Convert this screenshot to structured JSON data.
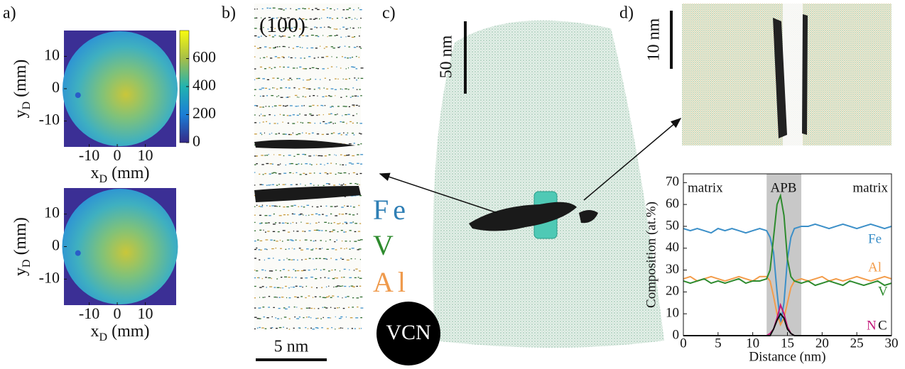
{
  "panel_labels": [
    "a)",
    "b)",
    "c)",
    "d)"
  ],
  "panel_b": {
    "orientation": "(100)",
    "scale_bar": "5 nm"
  },
  "elements": [
    {
      "name": "Fe",
      "color": "#2f7fb5"
    },
    {
      "name": "V",
      "color": "#2e8b2e"
    },
    {
      "name": "Al",
      "color": "#ef9a4c"
    }
  ],
  "badge": "VCN",
  "panel_c": {
    "scale_bar": "50 nm"
  },
  "panel_d": {
    "scale_bar": "10 nm"
  },
  "chart_data": [
    {
      "type": "heatmap",
      "xlabel": {
        "base": "x",
        "sub": "D",
        "unit": " (mm)"
      },
      "ylabel": {
        "base": "y",
        "sub": "D",
        "unit": " (mm)"
      },
      "xlim": [
        -19,
        21
      ],
      "ylim": [
        -18,
        18
      ],
      "xticks": [
        -10,
        0,
        10
      ],
      "yticks": [
        10,
        0,
        -10
      ],
      "colorbar": {
        "lim": [
          0,
          800
        ],
        "ticks": [
          0,
          200,
          400,
          600
        ]
      }
    },
    {
      "type": "heatmap",
      "xlabel": {
        "base": "x",
        "sub": "D",
        "unit": " (mm)"
      },
      "ylabel": {
        "base": "y",
        "sub": "D",
        "unit": " (mm)"
      },
      "xlim": [
        -19,
        21
      ],
      "ylim": [
        -18,
        18
      ],
      "xticks": [
        -10,
        0,
        10
      ],
      "yticks": [
        10,
        0,
        -10
      ]
    },
    {
      "type": "line",
      "xlabel": "Distance (nm)",
      "ylabel": "Composition (at.%)",
      "xlim": [
        0,
        30
      ],
      "ylim": [
        0,
        74
      ],
      "xticks": [
        0,
        5,
        10,
        15,
        20,
        25,
        30
      ],
      "yticks": [
        0,
        10,
        20,
        30,
        40,
        50,
        60,
        70
      ],
      "annotations": [
        "matrix",
        "APB",
        "matrix"
      ],
      "highlight_x": [
        12,
        17
      ],
      "x": [
        0,
        1,
        2,
        3,
        4,
        5,
        6,
        7,
        8,
        9,
        10,
        11,
        12,
        12.5,
        13,
        13.5,
        14,
        14.5,
        15,
        15.5,
        16,
        17,
        18,
        19,
        20,
        21,
        22,
        23,
        24,
        25,
        26,
        27,
        28,
        29,
        30
      ],
      "series": [
        {
          "name": "Fe",
          "color": "#3b8fc8",
          "values": [
            49,
            48,
            49,
            48,
            47,
            49,
            48,
            49,
            48,
            47,
            48,
            49,
            48,
            45,
            38,
            20,
            5,
            15,
            35,
            45,
            49,
            50,
            50,
            51,
            50,
            49,
            50,
            51,
            50,
            49,
            50,
            51,
            50,
            49,
            50
          ]
        },
        {
          "name": "Al",
          "color": "#f39c4a",
          "values": [
            26,
            27,
            25,
            26,
            27,
            26,
            25,
            26,
            27,
            26,
            25,
            27,
            27,
            25,
            18,
            10,
            5,
            8,
            15,
            22,
            25,
            26,
            25,
            26,
            27,
            25,
            26,
            25,
            26,
            27,
            26,
            25,
            26,
            27,
            26
          ]
        },
        {
          "name": "V",
          "color": "#2e8b2e",
          "values": [
            25,
            24,
            25,
            26,
            24,
            25,
            24,
            25,
            26,
            24,
            25,
            25,
            26,
            30,
            45,
            60,
            64,
            55,
            35,
            27,
            25,
            24,
            25,
            23,
            24,
            25,
            24,
            23,
            25,
            24,
            23,
            24,
            25,
            23,
            24
          ]
        },
        {
          "name": "N",
          "color": "#c2187a",
          "values": [
            0,
            0,
            0,
            0,
            0,
            0,
            0,
            0,
            0,
            0,
            0,
            0,
            0,
            1,
            3,
            8,
            14,
            10,
            4,
            1,
            0,
            0,
            0,
            0,
            0,
            0,
            0,
            0,
            0,
            0,
            0,
            0,
            0,
            0,
            0
          ]
        },
        {
          "name": "C",
          "color": "#111111",
          "values": [
            0,
            0,
            0,
            0,
            0,
            0,
            0,
            0,
            0,
            0,
            0,
            0,
            0,
            0,
            3,
            7,
            10,
            8,
            3,
            1,
            0,
            0,
            0,
            0,
            0,
            0,
            0,
            0,
            0,
            0,
            0,
            0,
            0,
            0,
            0
          ]
        }
      ]
    }
  ]
}
